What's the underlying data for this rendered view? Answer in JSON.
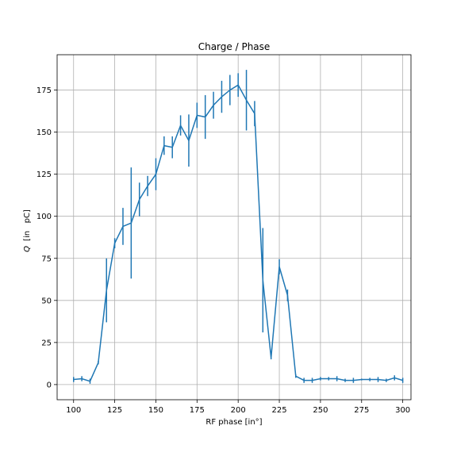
{
  "chart_data": {
    "type": "line",
    "title": "Charge / Phase",
    "xlabel": "RF phase [in°]",
    "ylabel_symbol": "Q",
    "ylabel_unit": "[in   pC]",
    "xlim": [
      90,
      305
    ],
    "ylim": [
      -9,
      196
    ],
    "xticks": [
      100,
      125,
      150,
      175,
      200,
      225,
      250,
      275,
      300
    ],
    "yticks": [
      0,
      25,
      50,
      75,
      100,
      125,
      150,
      175
    ],
    "grid": true,
    "line_color": "#1f77b4",
    "series": [
      {
        "x": [
          100,
          105,
          110,
          115,
          120,
          125,
          130,
          135,
          140,
          145,
          150,
          155,
          160,
          165,
          170,
          175,
          180,
          185,
          190,
          195,
          200,
          205,
          210,
          215,
          220,
          225,
          230,
          235,
          240,
          245,
          250,
          255,
          260,
          265,
          270,
          275,
          280,
          285,
          290,
          295,
          300
        ],
        "y": [
          3,
          3.5,
          2,
          13,
          56,
          84,
          94,
          96,
          110,
          118,
          125,
          142,
          141,
          154,
          145,
          160,
          159,
          166,
          171,
          175,
          178,
          169,
          161,
          62,
          16,
          70,
          53,
          5,
          2.5,
          2.5,
          3.5,
          3.5,
          3.5,
          2.5,
          2.5,
          3,
          3,
          3,
          2.5,
          4,
          2.5
        ],
        "err": [
          1.5,
          1.5,
          1.5,
          1,
          19,
          3,
          11,
          33,
          10,
          6,
          9.5,
          5.5,
          6.5,
          6,
          15.5,
          7.5,
          13,
          8,
          9.5,
          9,
          7,
          18,
          7.5,
          31,
          1,
          4.5,
          3.5,
          1,
          1.5,
          1.5,
          1,
          1,
          1.5,
          1,
          1.5,
          0.5,
          1,
          1.5,
          1,
          1.5,
          1.5
        ]
      }
    ]
  }
}
